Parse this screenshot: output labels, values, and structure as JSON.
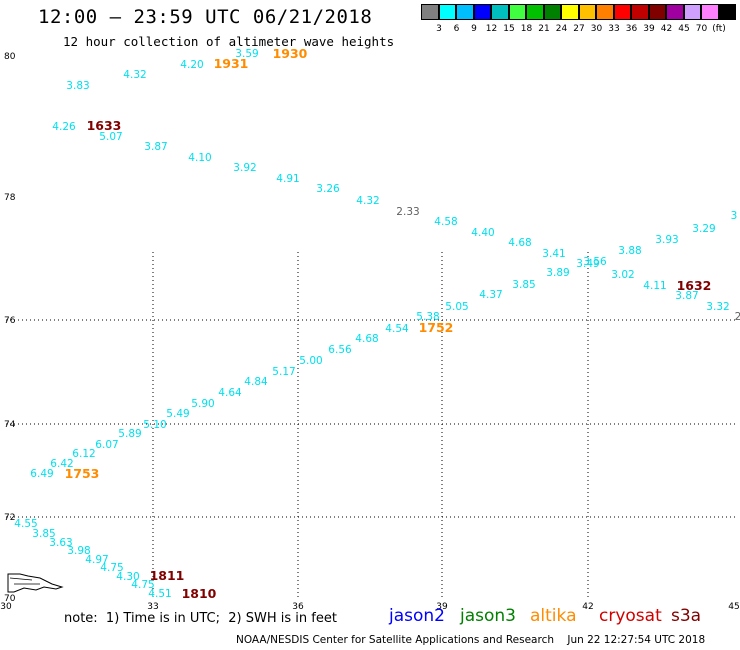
{
  "title": "12:00 – 23:59 UTC 06/21/2018",
  "subtitle": "12 hour collection of altimeter wave heights",
  "colorbar": {
    "colors": [
      "#808080",
      "#00ffff",
      "#00bfff",
      "#0000ff",
      "#00bfbf",
      "#40ff40",
      "#00c000",
      "#008000",
      "#ffff00",
      "#ffc000",
      "#ff8000",
      "#ff0000",
      "#c00000",
      "#800000",
      "#a000a0",
      "#d0a0ff",
      "#ff80ff",
      "#000000"
    ],
    "labels": [
      "3",
      "6",
      "9",
      "12",
      "15",
      "18",
      "21",
      "24",
      "27",
      "30",
      "33",
      "36",
      "39",
      "42",
      "45",
      "70",
      "(ft)"
    ]
  },
  "legend": {
    "note": "note:  1) Time is in UTC;  2) SWH is in feet",
    "satellites": [
      {
        "name": "jason2",
        "color": "#0000ff"
      },
      {
        "name": "jason3",
        "color": "#008000"
      },
      {
        "name": "altika",
        "color": "#ff8c00"
      },
      {
        "name": "cryosat",
        "color": "#d00000"
      },
      {
        "name": "s3a",
        "color": "#800000"
      }
    ]
  },
  "credit": "NOAA/NESDIS Center for Satellite Applications and Research    Jun 22 12:27:54 UTC 2018",
  "map": {
    "lon_ticks": [
      "30",
      "33",
      "36",
      "39",
      "42",
      "45"
    ],
    "lat_ticks": [
      "80",
      "78",
      "76",
      "74",
      "72",
      "70"
    ],
    "wave_heights": [
      [
        "3.59",
        247,
        57
      ],
      [
        "4.20",
        192,
        68
      ],
      [
        "4.32",
        135,
        78
      ],
      [
        "3.83",
        78,
        89
      ],
      [
        "4.26",
        64,
        130
      ],
      [
        "5.07",
        111,
        140
      ],
      [
        "3.87",
        156,
        150
      ],
      [
        "4.10",
        200,
        161
      ],
      [
        "3.92",
        245,
        171
      ],
      [
        "4.91",
        288,
        182
      ],
      [
        "3.26",
        328,
        192
      ],
      [
        "4.32",
        368,
        204
      ],
      [
        "4.58",
        446,
        225
      ],
      [
        "4.40",
        483,
        236
      ],
      [
        "4.68",
        520,
        246
      ],
      [
        "3.41",
        554,
        257
      ],
      [
        "3.56",
        595,
        265
      ],
      [
        "3.88",
        630,
        254
      ],
      [
        "3.93",
        667,
        243
      ],
      [
        "3.29",
        704,
        232
      ],
      [
        "3",
        734,
        219
      ],
      [
        "3.89",
        558,
        276
      ],
      [
        "3.49",
        588,
        267
      ],
      [
        "3.02",
        623,
        278
      ],
      [
        "4.11",
        655,
        289
      ],
      [
        "3.87",
        687,
        299
      ],
      [
        "3.32",
        718,
        310
      ],
      [
        "3.85",
        524,
        288
      ],
      [
        "4.37",
        491,
        298
      ],
      [
        "5.05",
        457,
        310
      ],
      [
        "5.38",
        428,
        320
      ],
      [
        "4.54",
        397,
        332
      ],
      [
        "4.68",
        367,
        342
      ],
      [
        "6.56",
        340,
        353
      ],
      [
        "5.00",
        311,
        364
      ],
      [
        "5.17",
        284,
        375
      ],
      [
        "4.84",
        256,
        385
      ],
      [
        "4.64",
        230,
        396
      ],
      [
        "5.90",
        203,
        407
      ],
      [
        "5.49",
        178,
        417
      ],
      [
        "5.10",
        155,
        428
      ],
      [
        "5.89",
        130,
        437
      ],
      [
        "6.07",
        107,
        448
      ],
      [
        "6.12",
        84,
        457
      ],
      [
        "6.42",
        62,
        467
      ],
      [
        "6.49",
        42,
        477
      ],
      [
        "4.55",
        26,
        527
      ],
      [
        "3.85",
        44,
        537
      ],
      [
        "3.63",
        61,
        546
      ],
      [
        "3.98",
        79,
        554
      ],
      [
        "4.97",
        97,
        563
      ],
      [
        "4.75",
        112,
        571
      ],
      [
        "4.30",
        128,
        580
      ],
      [
        "4.75",
        143,
        588
      ],
      [
        "4.51",
        160,
        597
      ]
    ],
    "other_heights": [
      [
        "2.33",
        408,
        215,
        "#606060"
      ],
      [
        "2",
        738,
        320,
        "#606060"
      ]
    ],
    "time_labels": [
      [
        "1930",
        290,
        58,
        "#ff8c00"
      ],
      [
        "1931",
        231,
        68,
        "#ff8c00"
      ],
      [
        "1633",
        104,
        130,
        "#800000"
      ],
      [
        "1632",
        694,
        290,
        "#800000"
      ],
      [
        "1752",
        436,
        332,
        "#ff8c00"
      ],
      [
        "1753",
        82,
        478,
        "#ff8c00"
      ],
      [
        "1811",
        167,
        580,
        "#800000"
      ],
      [
        "1810",
        199,
        598,
        "#800000"
      ]
    ]
  }
}
